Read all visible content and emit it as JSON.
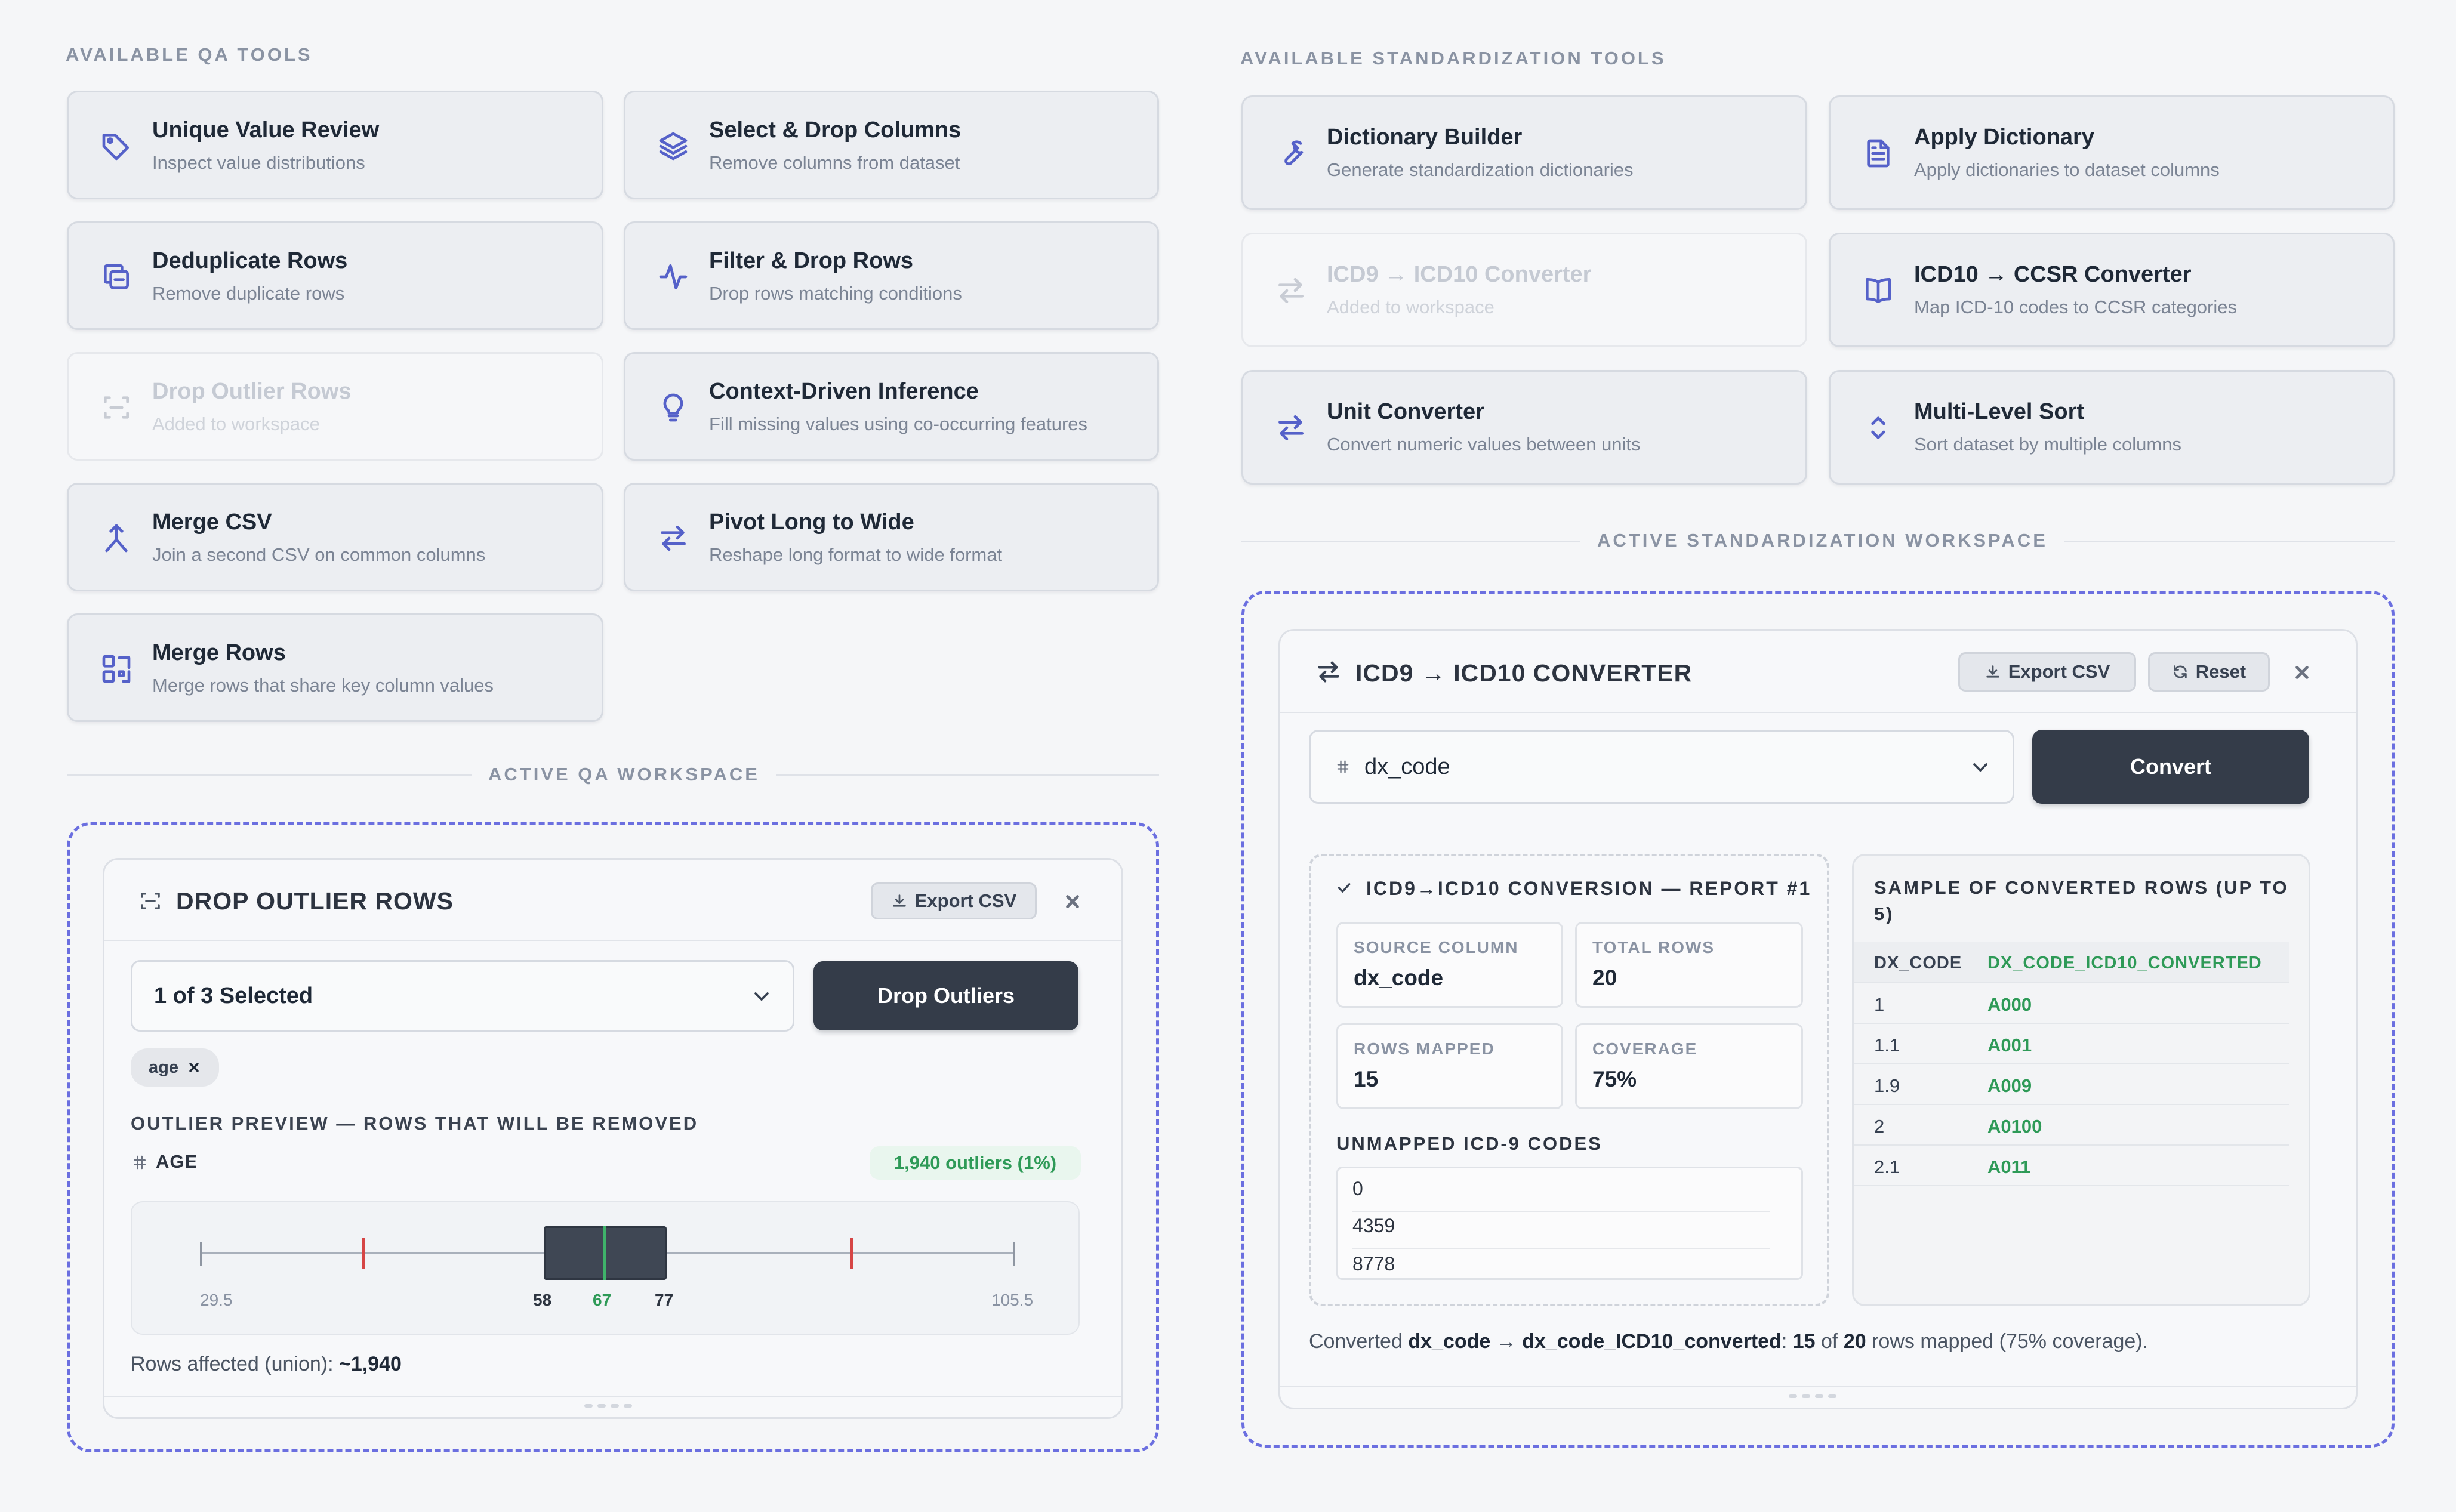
{
  "qa": {
    "section_label": "AVAILABLE QA TOOLS",
    "tools": [
      {
        "title": "Unique Value Review",
        "subtitle": "Inspect value distributions",
        "icon": "tag-icon"
      },
      {
        "title": "Select & Drop Columns",
        "subtitle": "Remove columns from dataset",
        "icon": "layers-icon"
      },
      {
        "title": "Deduplicate Rows",
        "subtitle": "Remove duplicate rows",
        "icon": "copy-icon"
      },
      {
        "title": "Filter & Drop Rows",
        "subtitle": "Drop rows matching conditions",
        "icon": "activity-icon"
      },
      {
        "title": "Drop Outlier Rows",
        "subtitle": "Added to workspace",
        "icon": "scan-icon",
        "disabled": true
      },
      {
        "title": "Context-Driven Inference",
        "subtitle": "Fill missing values using co-occurring features",
        "icon": "lightbulb-icon"
      },
      {
        "title": "Merge CSV",
        "subtitle": "Join a second CSV on common columns",
        "icon": "merge-icon"
      },
      {
        "title": "Pivot Long to Wide",
        "subtitle": "Reshape long format to wide format",
        "icon": "swap-icon"
      },
      {
        "title": "Merge Rows",
        "subtitle": "Merge rows that share key column values",
        "icon": "grid-merge-icon"
      }
    ],
    "workspace_label": "ACTIVE QA WORKSPACE",
    "panel": {
      "title": "DROP OUTLIER ROWS",
      "export_label": "Export CSV",
      "select_value": "1 of 3 Selected",
      "action_label": "Drop Outliers",
      "chip_label": "age",
      "preview_label": "OUTLIER PREVIEW — ROWS THAT WILL BE REMOVED",
      "column_label": "AGE",
      "outlier_badge": "1,940 outliers (1%)",
      "box_labels": {
        "min": "29.5",
        "q1": "58",
        "median": "67",
        "q3": "77",
        "max": "105.5"
      },
      "rows_affected_prefix": "Rows affected (union): ",
      "rows_affected_value": "~1,940"
    }
  },
  "std": {
    "section_label": "AVAILABLE STANDARDIZATION TOOLS",
    "tools": [
      {
        "title": "Dictionary Builder",
        "subtitle": "Generate standardization dictionaries",
        "icon": "wrench-icon"
      },
      {
        "title": "Apply Dictionary",
        "subtitle": "Apply dictionaries to dataset columns",
        "icon": "document-icon"
      },
      {
        "title": "ICD9 → ICD10 Converter",
        "subtitle": "Added to workspace",
        "icon": "arrows-icon",
        "disabled": true
      },
      {
        "title": "ICD10 → CCSR Converter",
        "subtitle": "Map ICD-10 codes to CCSR categories",
        "icon": "book-icon"
      },
      {
        "title": "Unit Converter",
        "subtitle": "Convert numeric values between units",
        "icon": "arrows-icon"
      },
      {
        "title": "Multi-Level Sort",
        "subtitle": "Sort dataset by multiple columns",
        "icon": "sort-icon"
      }
    ],
    "workspace_label": "ACTIVE STANDARDIZATION WORKSPACE",
    "panel": {
      "title": "ICD9 → ICD10 CONVERTER",
      "export_label": "Export CSV",
      "reset_label": "Reset",
      "select_value": "dx_code",
      "action_label": "Convert",
      "report_title": "ICD9→ICD10 CONVERSION — REPORT #1",
      "stats": [
        {
          "label": "SOURCE COLUMN",
          "value": "dx_code"
        },
        {
          "label": "TOTAL ROWS",
          "value": "20"
        },
        {
          "label": "ROWS MAPPED",
          "value": "15"
        },
        {
          "label": "COVERAGE",
          "value": "75%"
        }
      ],
      "unmapped_label": "UNMAPPED ICD-9 CODES",
      "unmapped": [
        "0",
        "4359",
        "8778"
      ],
      "sample_title": "SAMPLE OF CONVERTED ROWS (UP TO 5)",
      "sample_headers": [
        "DX_CODE",
        "DX_CODE_ICD10_CONVERTED"
      ],
      "sample_rows": [
        [
          "1",
          "A000"
        ],
        [
          "1.1",
          "A001"
        ],
        [
          "1.9",
          "A009"
        ],
        [
          "2",
          "A0100"
        ],
        [
          "2.1",
          "A011"
        ]
      ],
      "summary": {
        "t1": "Converted ",
        "b1": "dx_code",
        "t2": " → ",
        "b2": "dx_code_ICD10_converted",
        "t3": ": ",
        "b3": "15",
        "t4": " of ",
        "b4": "20",
        "t5": " rows mapped (75% coverage)."
      }
    }
  },
  "colors": {
    "accent": "#5561c9",
    "dashed": "#6b6fe0",
    "dark_button": "#343c49",
    "success": "#2e9a57",
    "outlier_line": "#d64545"
  }
}
